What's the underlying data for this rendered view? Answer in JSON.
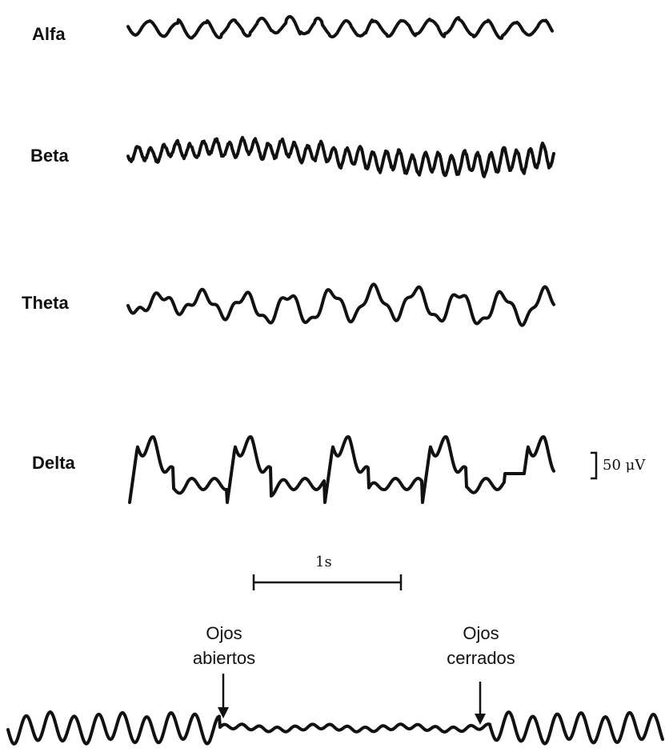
{
  "bands": [
    {
      "id": "alfa",
      "label": "Alfa"
    },
    {
      "id": "beta",
      "label": "Beta"
    },
    {
      "id": "theta",
      "label": "Theta"
    },
    {
      "id": "delta",
      "label": "Delta"
    }
  ],
  "scale_bar": {
    "label": "50 μV"
  },
  "time_bar": {
    "label": "1s"
  },
  "events": {
    "eyes_open_l1": "Ojos",
    "eyes_open_l2": "abiertos",
    "eyes_closed_l1": "Ojos",
    "eyes_closed_l2": "cerrados"
  },
  "colors": {
    "trace": "#111111",
    "background": "#ffffff"
  }
}
